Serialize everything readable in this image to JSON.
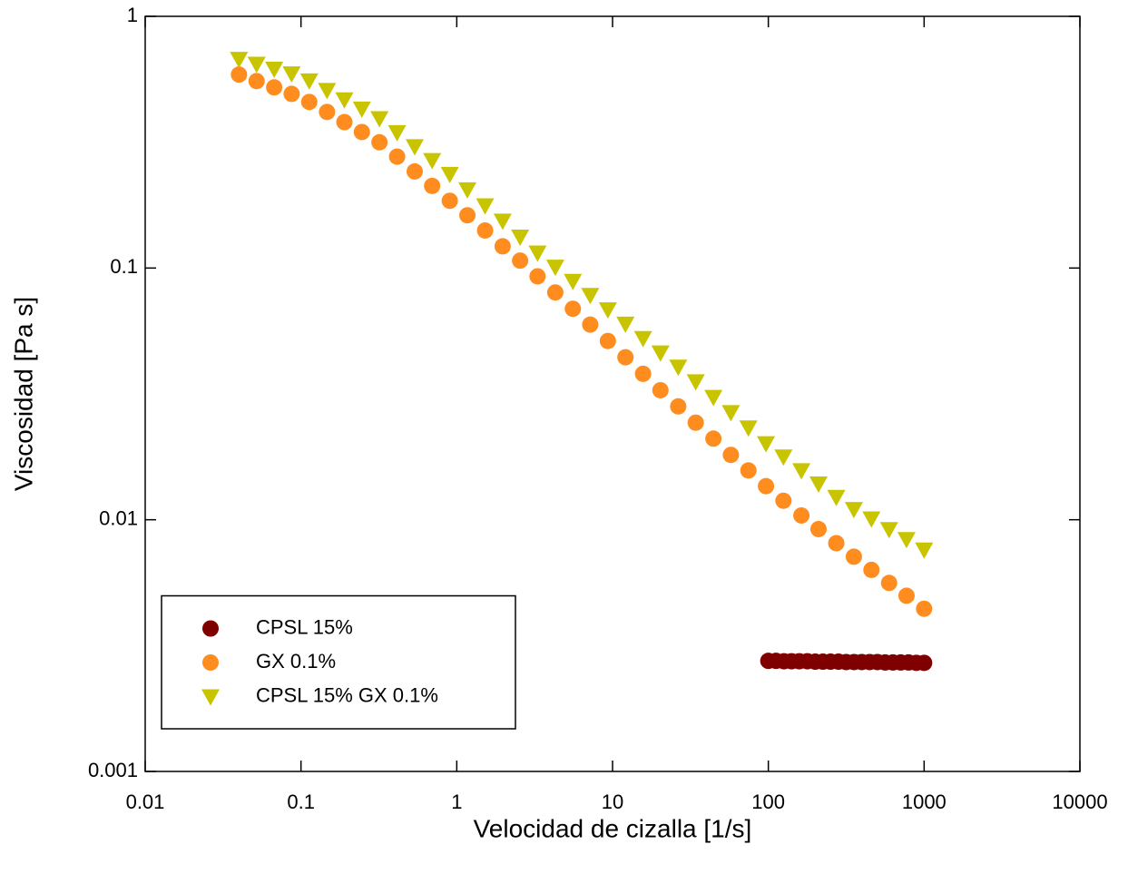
{
  "chart_data": {
    "type": "scatter",
    "xlabel": "Velocidad de cizalla [1/s]",
    "ylabel": "Viscosidad [Pa s]",
    "xscale": "log",
    "yscale": "log",
    "xlim": [
      0.01,
      10000
    ],
    "ylim": [
      0.001,
      1
    ],
    "xticks": [
      0.01,
      0.1,
      1,
      10,
      100,
      1000,
      10000
    ],
    "yticks": [
      0.001,
      0.01,
      0.1,
      1
    ],
    "legend": "lower left",
    "series": [
      {
        "name": "CPSL 15%",
        "color": "#7f0000",
        "marker": "circle",
        "x": [
          100,
          112,
          126,
          141,
          158,
          178,
          200,
          224,
          251,
          282,
          316,
          355,
          398,
          447,
          501,
          562,
          631,
          708,
          794,
          891,
          1000
        ],
        "values": [
          0.00275,
          0.00275,
          0.00274,
          0.00274,
          0.00274,
          0.00274,
          0.00273,
          0.00273,
          0.00273,
          0.00273,
          0.00272,
          0.00272,
          0.00272,
          0.00272,
          0.00272,
          0.00271,
          0.00271,
          0.00271,
          0.00271,
          0.0027,
          0.0027
        ]
      },
      {
        "name": "GX 0.1%",
        "color": "#ff8c1e",
        "marker": "circle",
        "x": [
          0.04,
          0.0519,
          0.0673,
          0.0871,
          0.113,
          0.147,
          0.19,
          0.246,
          0.319,
          0.414,
          0.537,
          0.695,
          0.902,
          1.17,
          1.52,
          1.97,
          2.55,
          3.3,
          4.29,
          5.56,
          7.19,
          9.33,
          12.1,
          15.7,
          20.3,
          26.4,
          34.2,
          44.4,
          57.5,
          74.5,
          96.6,
          125,
          163,
          210,
          273,
          354,
          459,
          596,
          771,
          1000
        ],
        "values": [
          0.587,
          0.553,
          0.522,
          0.492,
          0.457,
          0.417,
          0.38,
          0.347,
          0.316,
          0.277,
          0.242,
          0.212,
          0.185,
          0.162,
          0.141,
          0.122,
          0.107,
          0.0927,
          0.08,
          0.0689,
          0.0596,
          0.0513,
          0.0442,
          0.038,
          0.0327,
          0.0282,
          0.0243,
          0.021,
          0.0181,
          0.0157,
          0.0136,
          0.0119,
          0.0104,
          0.00918,
          0.00807,
          0.00713,
          0.00632,
          0.00561,
          0.00499,
          0.00443
        ]
      },
      {
        "name": "CPSL 15% GX 0.1%",
        "color": "#c8c400",
        "marker": "triangle_down",
        "x": [
          0.04,
          0.0519,
          0.0673,
          0.0871,
          0.113,
          0.147,
          0.19,
          0.246,
          0.319,
          0.414,
          0.537,
          0.695,
          0.902,
          1.17,
          1.52,
          1.97,
          2.55,
          3.3,
          4.29,
          5.56,
          7.19,
          9.33,
          12.1,
          15.7,
          20.3,
          26.4,
          34.2,
          44.4,
          57.5,
          74.5,
          96.6,
          125,
          163,
          210,
          273,
          354,
          459,
          596,
          771,
          1000
        ],
        "values": [
          0.676,
          0.647,
          0.618,
          0.592,
          0.555,
          0.509,
          0.467,
          0.429,
          0.393,
          0.346,
          0.304,
          0.268,
          0.236,
          0.205,
          0.177,
          0.154,
          0.133,
          0.115,
          0.101,
          0.0887,
          0.078,
          0.0684,
          0.06,
          0.0526,
          0.0461,
          0.0405,
          0.0354,
          0.0307,
          0.0267,
          0.0232,
          0.0201,
          0.0178,
          0.0157,
          0.0139,
          0.0123,
          0.011,
          0.0101,
          0.00916,
          0.00836,
          0.0076
        ]
      }
    ]
  }
}
